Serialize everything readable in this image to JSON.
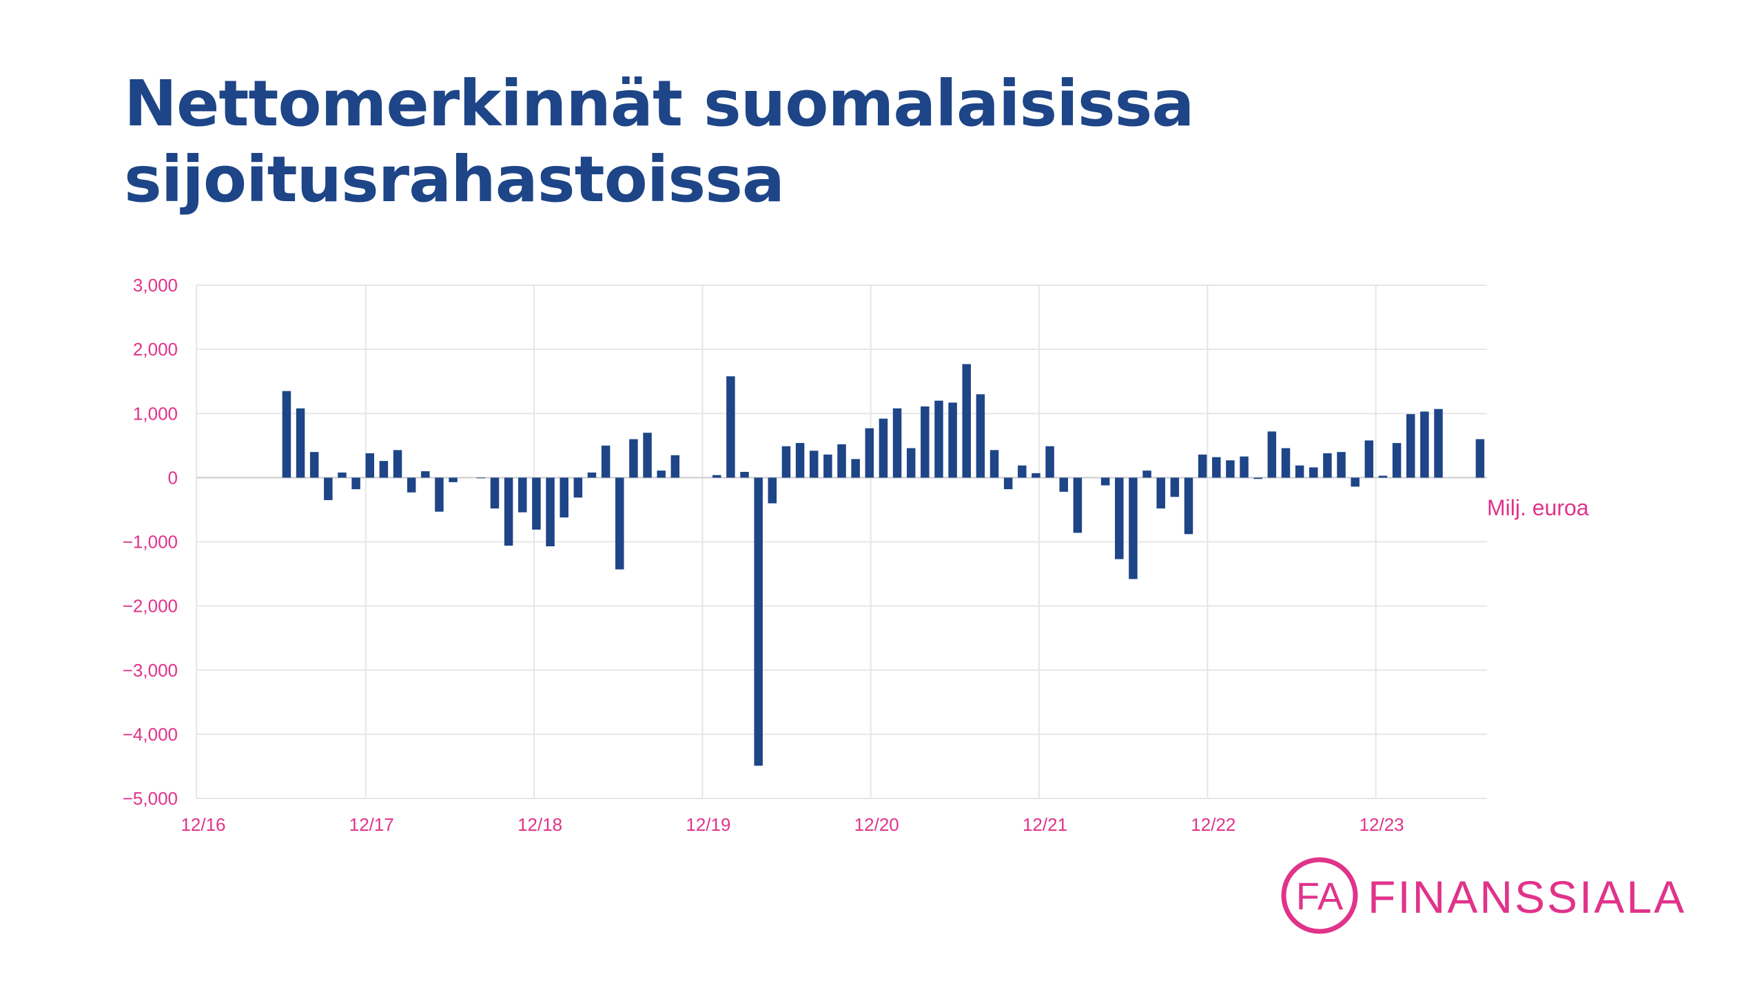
{
  "colors": {
    "title": "#1d4587",
    "bar": "#1d4587",
    "accent": "#e0338a",
    "grid": "#e6e6e6"
  },
  "chart_data": {
    "type": "bar",
    "title_lines": [
      "Nettomerkinnät suomalaisissa",
      "sijoitusrahastoissa"
    ],
    "unit_label": "Milj. euroa",
    "ylim": [
      -5000,
      3000
    ],
    "y_ticks": [
      3000,
      2000,
      1000,
      0,
      -1000,
      -2000,
      -3000,
      -4000,
      -5000
    ],
    "y_tick_labels": [
      "3,000",
      "2,000",
      "1,000",
      "0",
      "−1,000",
      "−2,000",
      "−3,000",
      "−4,000",
      "−5,000"
    ],
    "x_tick_labels": [
      "12/16",
      "12/17",
      "12/18",
      "12/19",
      "12/20",
      "12/21",
      "12/22",
      "12/23"
    ],
    "grid": true,
    "series": [
      {
        "values": [
          0,
          0,
          0,
          0,
          0,
          0,
          1350,
          1080,
          400,
          -350,
          80,
          -180,
          380,
          260,
          430,
          -230,
          100,
          -530,
          -70,
          0,
          -10,
          -480,
          -1060,
          -540,
          -810,
          -1070,
          -620,
          -310,
          80,
          500,
          -1430,
          600,
          700,
          110,
          350,
          0,
          0,
          40,
          1580,
          90,
          -4490,
          -400,
          490,
          540,
          420,
          360,
          520,
          290,
          770,
          920,
          1080,
          460,
          1110,
          1200,
          1170,
          1770,
          1300,
          430,
          -180,
          190,
          70,
          490,
          -220,
          -860,
          0,
          -120,
          -1270,
          -1580,
          110,
          -480,
          -300,
          -880,
          360,
          320,
          270,
          330,
          -20,
          720,
          460,
          190,
          160,
          380,
          400,
          -140,
          580,
          30,
          540,
          990,
          1030,
          1070,
          0,
          0,
          600
        ]
      }
    ]
  },
  "logo": {
    "monogram": "FA",
    "text": "FINANSSIALA"
  }
}
